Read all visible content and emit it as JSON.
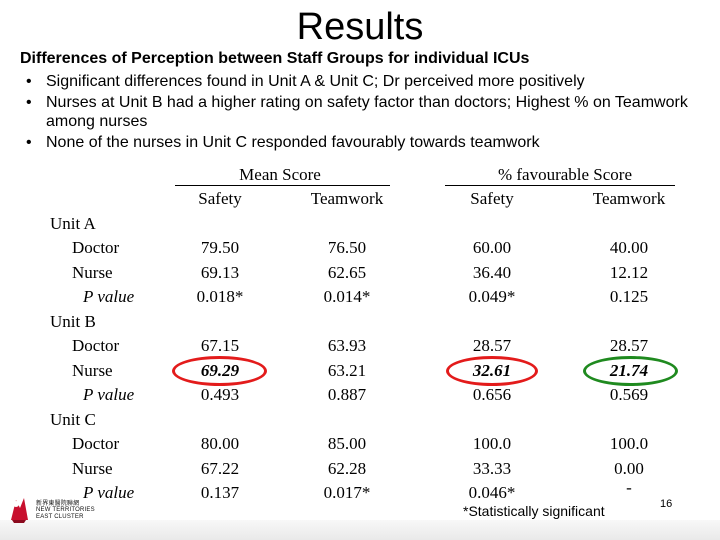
{
  "title": "Results",
  "subheading": "Differences of Perception between Staff Groups for individual ICUs",
  "bullets": [
    "Significant differences found in Unit A & Unit C; Dr perceived more positively",
    "Nurses at Unit B had a higher rating on safety factor than doctors; Highest % on Teamwork among nurses",
    "None of the nurses in Unit C responded favourably towards teamwork"
  ],
  "bullet_glyph": "•",
  "table": {
    "group_headers": [
      "Mean Score",
      "% favourable Score"
    ],
    "sub_headers": [
      "Safety",
      "Teamwork",
      "Safety",
      "Teamwork"
    ],
    "units": [
      {
        "label": "Unit A",
        "rows": [
          {
            "label": "Doctor",
            "values": [
              "79.50",
              "76.50",
              "60.00",
              "40.00"
            ]
          },
          {
            "label": "Nurse",
            "values": [
              "69.13",
              "62.65",
              "36.40",
              "12.12"
            ]
          },
          {
            "label": "P value",
            "values": [
              "0.018*",
              "0.014*",
              "0.049*",
              "0.125"
            ]
          }
        ]
      },
      {
        "label": "Unit B",
        "rows": [
          {
            "label": "Doctor",
            "values": [
              "67.15",
              "63.93",
              "28.57",
              "28.57"
            ]
          },
          {
            "label": "Nurse",
            "values": [
              "69.29",
              "63.21",
              "32.61",
              "21.74"
            ]
          },
          {
            "label": "P value",
            "values": [
              "0.493",
              "0.887",
              "0.656",
              "0.569"
            ]
          }
        ]
      },
      {
        "label": "Unit C",
        "rows": [
          {
            "label": "Doctor",
            "values": [
              "80.00",
              "85.00",
              "100.0",
              "100.0"
            ]
          },
          {
            "label": "Nurse",
            "values": [
              "67.22",
              "62.28",
              "33.33",
              "0.00"
            ]
          },
          {
            "label": "P value",
            "values": [
              "0.137",
              "0.017*",
              "0.046*",
              "-"
            ]
          }
        ]
      }
    ]
  },
  "highlight_colors": {
    "red": "#e31b1b",
    "green": "#1f8a1f"
  },
  "footnote": "*Statistically significant",
  "page_number": "16",
  "logo_lines": [
    "新界東醫院聯網",
    "NEW TERRITORIES",
    "EAST CLUSTER"
  ]
}
